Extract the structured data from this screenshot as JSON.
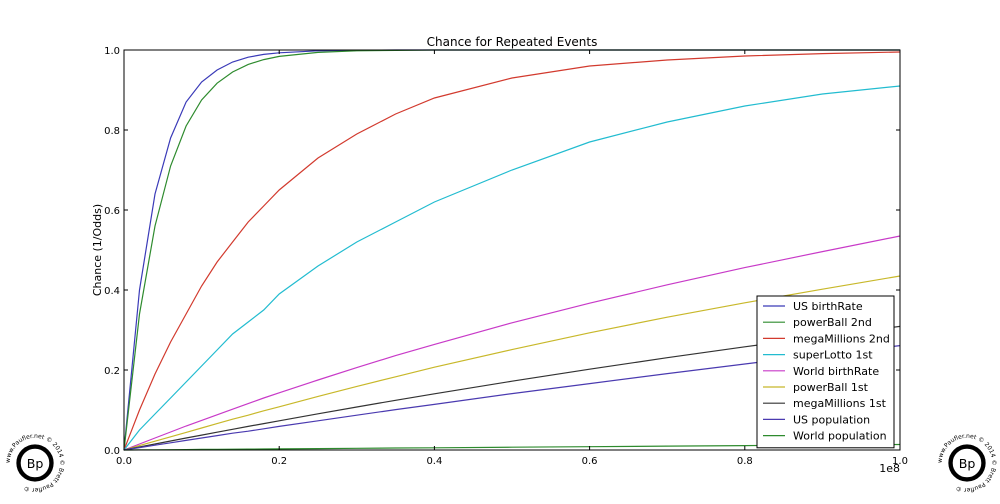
{
  "chart_data": {
    "type": "line",
    "title": "Chance for Repeated Events",
    "xlabel": "",
    "ylabel": "Chance (1/Odds)",
    "x_offset_label": "1e8",
    "xlim": [
      0,
      1.0
    ],
    "ylim": [
      0,
      1.0
    ],
    "x_scale_factor": 100000000,
    "xticks": [
      "0.0",
      "0.2",
      "0.4",
      "0.6",
      "0.8",
      "1.0"
    ],
    "yticks": [
      "0.0",
      "0.2",
      "0.4",
      "0.6",
      "0.8",
      "1.0"
    ],
    "grid": false,
    "legend_position": "lower-right",
    "x": [
      0,
      0.02,
      0.04,
      0.06,
      0.08,
      0.1,
      0.12,
      0.14,
      0.16,
      0.18,
      0.2,
      0.25,
      0.3,
      0.35,
      0.4,
      0.5,
      0.6,
      0.7,
      0.8,
      0.9,
      1.0
    ],
    "series": [
      {
        "name": "US birthRate",
        "color": "#3a3ab8",
        "values": [
          0,
          0.4,
          0.64,
          0.78,
          0.87,
          0.92,
          0.95,
          0.97,
          0.982,
          0.989,
          0.993,
          0.998,
          0.999,
          1.0,
          1.0,
          1.0,
          1.0,
          1.0,
          1.0,
          1.0,
          1.0
        ]
      },
      {
        "name": "powerBall 2nd",
        "color": "#2e8b2e",
        "values": [
          0,
          0.34,
          0.56,
          0.71,
          0.81,
          0.875,
          0.917,
          0.945,
          0.964,
          0.976,
          0.984,
          0.994,
          0.998,
          0.999,
          1.0,
          1.0,
          1.0,
          1.0,
          1.0,
          1.0,
          1.0
        ]
      },
      {
        "name": "megaMillions 2nd",
        "color": "#d23a2e",
        "values": [
          0,
          0.1,
          0.19,
          0.27,
          0.34,
          0.41,
          0.47,
          0.52,
          0.57,
          0.61,
          0.65,
          0.73,
          0.79,
          0.84,
          0.88,
          0.93,
          0.96,
          0.975,
          0.985,
          0.991,
          0.995
        ]
      },
      {
        "name": "superLotto 1st",
        "color": "#22bcd0",
        "values": [
          0,
          0.05,
          0.09,
          0.13,
          0.17,
          0.21,
          0.25,
          0.29,
          0.32,
          0.35,
          0.39,
          0.46,
          0.52,
          0.57,
          0.62,
          0.7,
          0.77,
          0.82,
          0.86,
          0.89,
          0.91
        ]
      },
      {
        "name": "World birthRate",
        "color": "#c83ac8",
        "values": [
          0,
          0.015,
          0.03,
          0.045,
          0.06,
          0.074,
          0.088,
          0.102,
          0.116,
          0.13,
          0.143,
          0.175,
          0.206,
          0.236,
          0.264,
          0.318,
          0.367,
          0.413,
          0.456,
          0.496,
          0.535
        ]
      },
      {
        "name": "powerBall 1st",
        "color": "#c8b82a",
        "values": [
          0,
          0.011,
          0.022,
          0.033,
          0.044,
          0.055,
          0.066,
          0.077,
          0.087,
          0.098,
          0.108,
          0.134,
          0.159,
          0.183,
          0.207,
          0.251,
          0.293,
          0.332,
          0.368,
          0.402,
          0.435
        ]
      },
      {
        "name": "megaMillions 1st",
        "color": "#333333",
        "values": [
          0,
          0.0076,
          0.0151,
          0.0225,
          0.0299,
          0.0372,
          0.0445,
          0.0517,
          0.0589,
          0.066,
          0.0731,
          0.0906,
          0.1076,
          0.1243,
          0.1406,
          0.1721,
          0.202,
          0.2307,
          0.258,
          0.284,
          0.309
        ]
      },
      {
        "name": "US population",
        "color": "#4a3ab0",
        "values": [
          0,
          0.006,
          0.012,
          0.018,
          0.024,
          0.03,
          0.036,
          0.042,
          0.047,
          0.053,
          0.059,
          0.073,
          0.087,
          0.101,
          0.114,
          0.141,
          0.166,
          0.191,
          0.215,
          0.239,
          0.261
        ]
      },
      {
        "name": "World population",
        "color": "#2e8b2e",
        "values": [
          0,
          0.0003,
          0.0006,
          0.0008,
          0.0011,
          0.0014,
          0.0017,
          0.002,
          0.0022,
          0.0025,
          0.0028,
          0.0035,
          0.0042,
          0.0049,
          0.0056,
          0.0069,
          0.0083,
          0.0097,
          0.011,
          0.0124,
          0.0138
        ]
      }
    ]
  },
  "watermark": {
    "monogram": "Bp",
    "ring_text": "www.Paufler.net © 2014 © Brett Paufler ©"
  }
}
